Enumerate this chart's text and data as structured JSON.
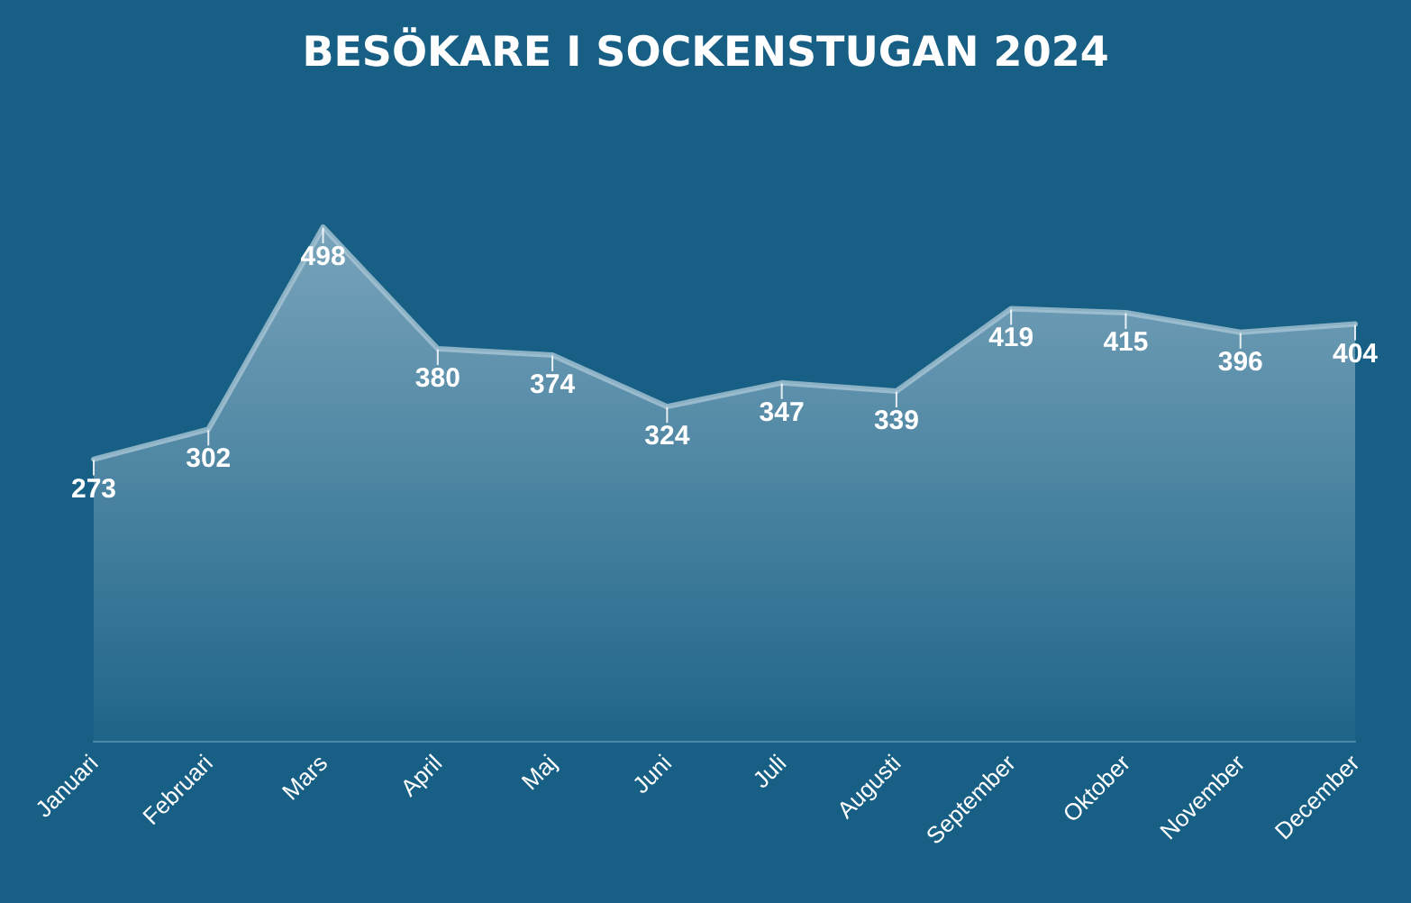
{
  "chart_data": {
    "type": "area",
    "title": "BESÖKARE I SOCKENSTUGAN 2024",
    "categories": [
      "Januari",
      "Februari",
      "Mars",
      "April",
      "Maj",
      "Juni",
      "Juli",
      "Augusti",
      "September",
      "Oktober",
      "November",
      "December"
    ],
    "values": [
      273,
      302,
      498,
      380,
      374,
      324,
      347,
      339,
      419,
      415,
      396,
      404
    ],
    "color": "#a9c6d6",
    "data_labels": true
  }
}
